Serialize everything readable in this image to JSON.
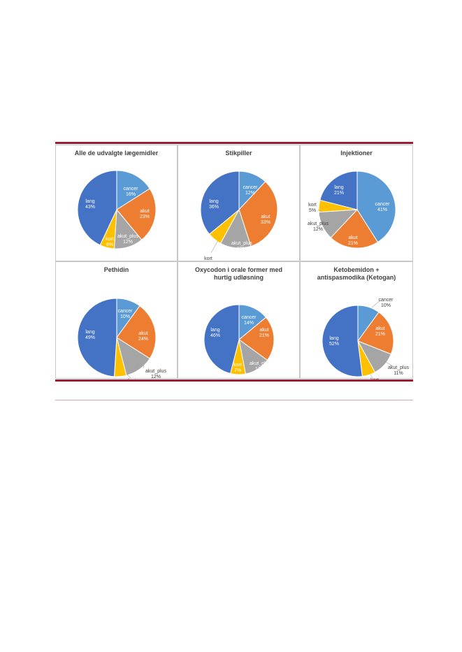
{
  "colors": {
    "cancer": "#5b9bd5",
    "akut": "#ed7d31",
    "akut_plus": "#a5a5a5",
    "kort": "#ffc000",
    "lang": "#4472c4",
    "rule": "#9e1b34"
  },
  "chart_data": [
    {
      "type": "pie",
      "title": "Alle de udvalgte lægemidler",
      "categories": [
        "cancer",
        "akut",
        "akut_plus",
        "kort",
        "lang"
      ],
      "values": [
        16,
        23,
        12,
        6,
        43
      ],
      "value_suffix": "%"
    },
    {
      "type": "pie",
      "title": "Stikpiller",
      "categories": [
        "cancer",
        "akut",
        "akut_plus",
        "kort",
        "lang"
      ],
      "values": [
        12,
        33,
        13,
        6,
        36
      ],
      "value_suffix": "%"
    },
    {
      "type": "pie",
      "title": "Injektioner",
      "categories": [
        "cancer",
        "akut",
        "akut_plus",
        "kort",
        "lang"
      ],
      "values": [
        41,
        21,
        12,
        5,
        21
      ],
      "value_suffix": "%"
    },
    {
      "type": "pie",
      "title": "Pethidin",
      "categories": [
        "cancer",
        "akut",
        "akut_plus",
        "kort",
        "lang"
      ],
      "values": [
        10,
        24,
        12,
        5,
        49
      ],
      "value_suffix": "%"
    },
    {
      "type": "pie",
      "title": "Oxycodon i orale former med hurtig udløsning",
      "categories": [
        "cancer",
        "akut",
        "akut_plus",
        "kort",
        "lang"
      ],
      "values": [
        14,
        21,
        12,
        7,
        46
      ],
      "value_suffix": "%"
    },
    {
      "type": "pie",
      "title": "Ketobemidon + antispasmodika (Ketogan)",
      "categories": [
        "cancer",
        "akut",
        "akut_plus",
        "kort",
        "lang"
      ],
      "values": [
        10,
        21,
        11,
        6,
        52
      ],
      "value_suffix": "%"
    }
  ]
}
